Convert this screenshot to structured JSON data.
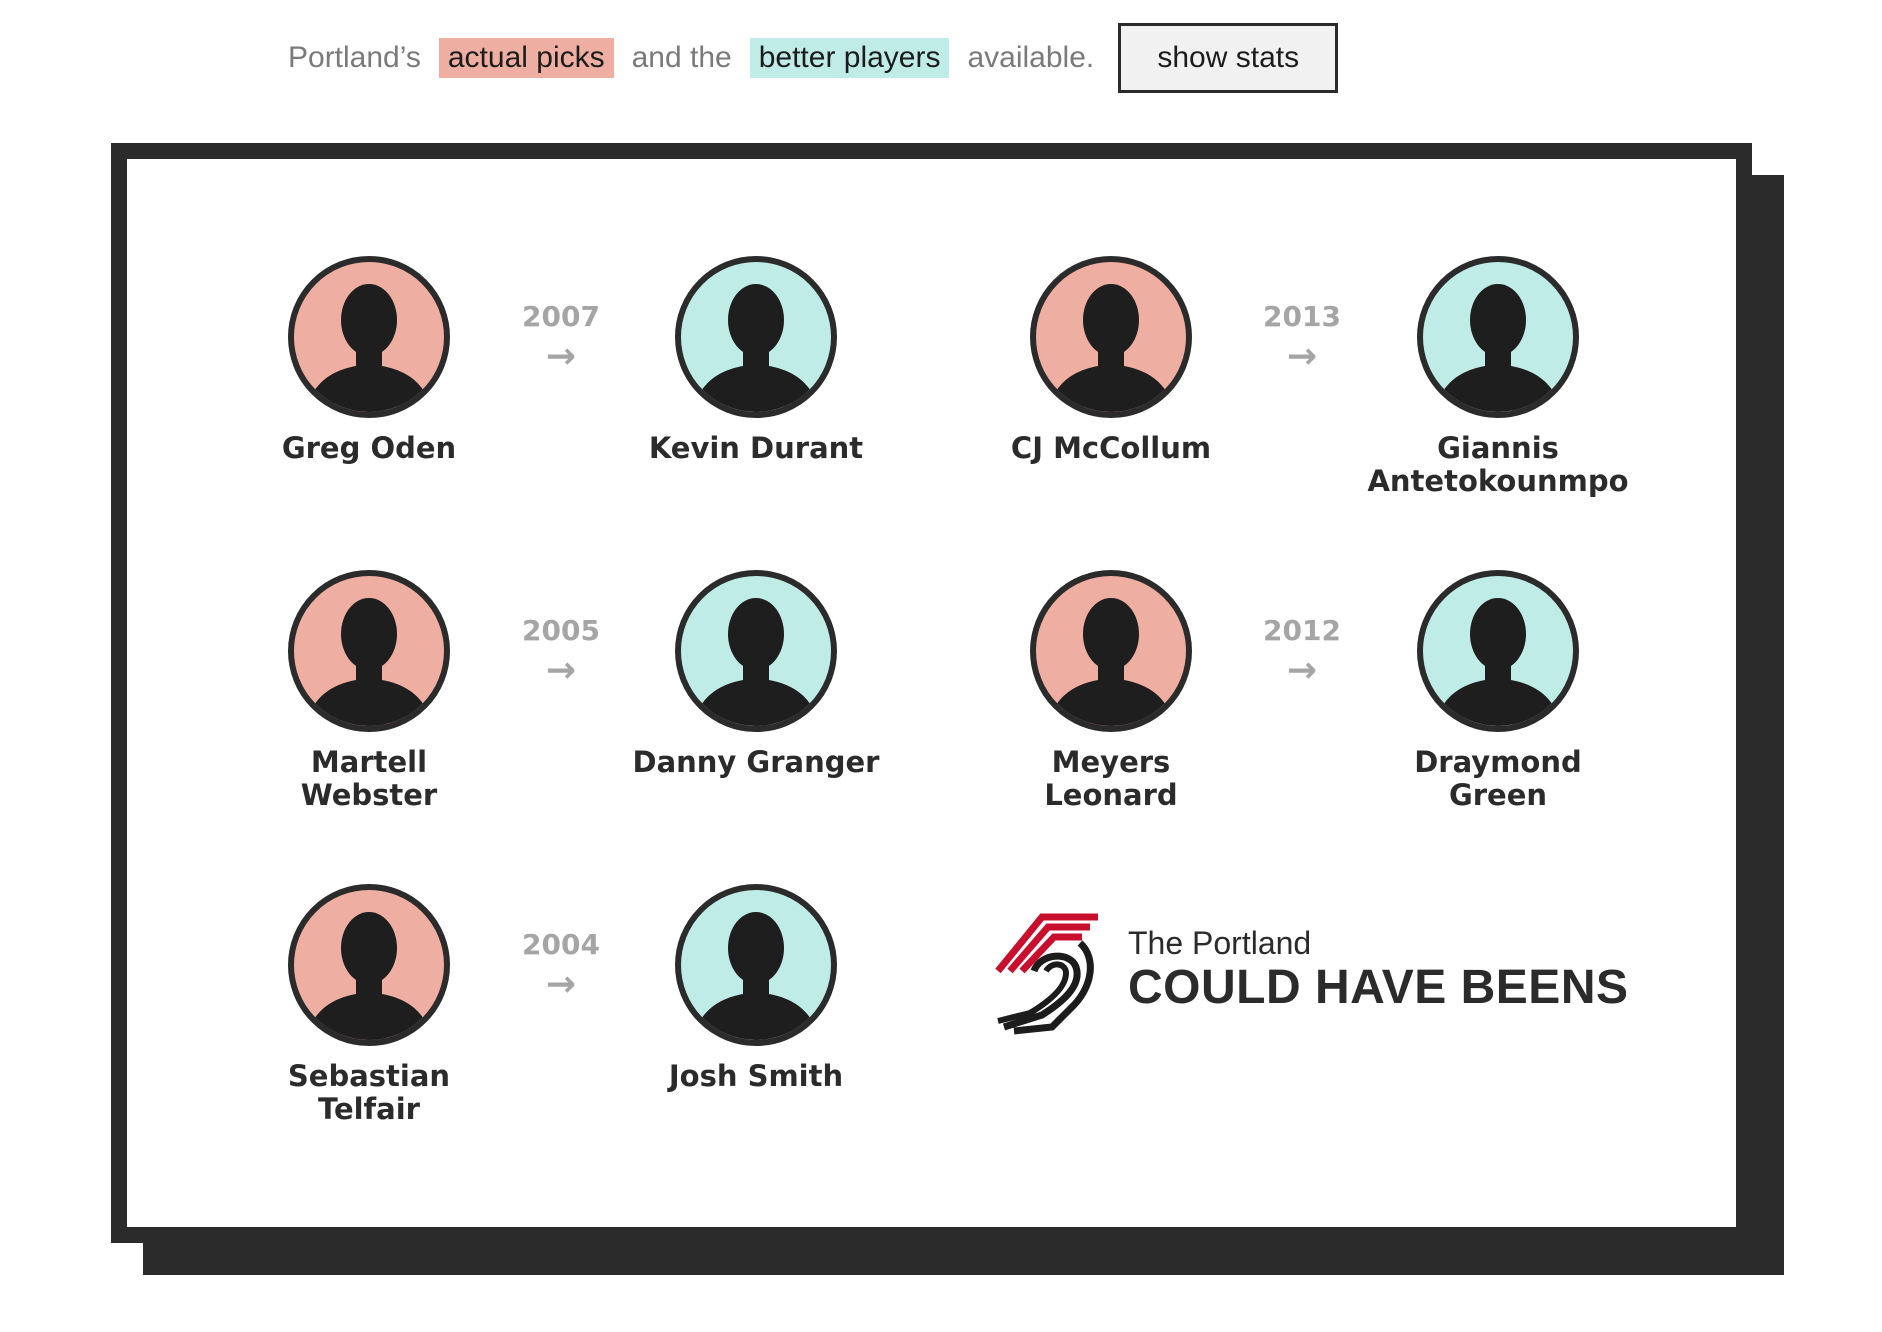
{
  "legend": {
    "prefix": "Portland’s",
    "actual_label": "actual picks",
    "middle": "and the",
    "better_label": "better players",
    "suffix": "available.",
    "button_label": "show stats"
  },
  "colors": {
    "actual_pick": "#efaea2",
    "better_player": "#bfece6",
    "frame": "#2b2b2b",
    "logo_red": "#c8102e"
  },
  "pairs": [
    {
      "year": "2007",
      "actual": [
        "Greg Oden"
      ],
      "better": [
        "Kevin Durant"
      ]
    },
    {
      "year": "2013",
      "actual": [
        "CJ McCollum"
      ],
      "better": [
        "Giannis",
        "Antetokounmpo"
      ]
    },
    {
      "year": "2005",
      "actual": [
        "Martell",
        "Webster"
      ],
      "better": [
        "Danny Granger"
      ]
    },
    {
      "year": "2012",
      "actual": [
        "Meyers",
        "Leonard"
      ],
      "better": [
        "Draymond",
        "Green"
      ]
    },
    {
      "year": "2004",
      "actual": [
        "Sebastian",
        "Telfair"
      ],
      "better": [
        "Josh Smith"
      ]
    }
  ],
  "arrow_glyph": "→",
  "logo": {
    "line1": "The Portland",
    "line2": "COULD HAVE BEENS",
    "icon": "trail-blazers-pinwheel-icon"
  }
}
